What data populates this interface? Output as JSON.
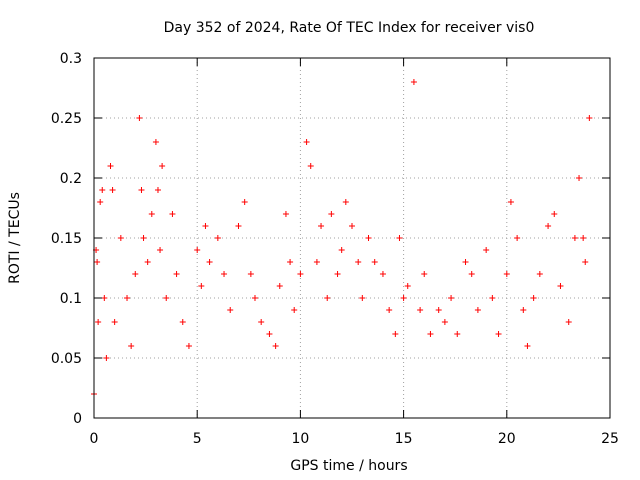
{
  "chart_data": {
    "type": "scatter",
    "title": "Day 352 of 2024, Rate Of TEC Index for receiver vis0",
    "xlabel": "GPS time / hours",
    "ylabel": "ROTI / TECUs",
    "xlim": [
      0,
      25
    ],
    "ylim": [
      0,
      0.3
    ],
    "xticks": [
      "0",
      "5",
      "10",
      "15",
      "20",
      "25"
    ],
    "yticks": [
      "0",
      "0.05",
      "0.1",
      "0.15",
      "0.2",
      "0.25",
      "0.3"
    ],
    "grid": true,
    "marker": "+",
    "color": "#ff0000",
    "series": [
      {
        "x": [
          0.0,
          0.1,
          0.15,
          0.2,
          0.3,
          0.4,
          0.5,
          0.6,
          0.8,
          0.9,
          1.0,
          1.3,
          1.6,
          1.8,
          2.0,
          2.2,
          2.3,
          2.4,
          2.6,
          2.8,
          3.0,
          3.1,
          3.2,
          3.3,
          3.5,
          3.8,
          4.0,
          4.3,
          4.6,
          5.0,
          5.2,
          5.4,
          5.6,
          6.0,
          6.3,
          6.6,
          7.0,
          7.3,
          7.6,
          7.8,
          8.1,
          8.5,
          8.8,
          9.0,
          9.3,
          9.5,
          9.7,
          10.0,
          10.3,
          10.5,
          10.8,
          11.0,
          11.3,
          11.5,
          11.8,
          12.0,
          12.2,
          12.5,
          12.8,
          13.0,
          13.3,
          13.6,
          14.0,
          14.3,
          14.6,
          14.8,
          15.0,
          15.2,
          15.5,
          15.8,
          16.0,
          16.3,
          16.7,
          17.0,
          17.3,
          17.6,
          18.0,
          18.3,
          18.6,
          19.0,
          19.3,
          19.6,
          20.0,
          20.2,
          20.5,
          20.8,
          21.0,
          21.3,
          21.6,
          22.0,
          22.3,
          22.6,
          23.0,
          23.3,
          23.5,
          23.7,
          23.8,
          24.0
        ],
        "y": [
          0.02,
          0.14,
          0.13,
          0.08,
          0.18,
          0.19,
          0.1,
          0.05,
          0.21,
          0.19,
          0.08,
          0.15,
          0.1,
          0.06,
          0.12,
          0.25,
          0.19,
          0.15,
          0.13,
          0.17,
          0.23,
          0.19,
          0.14,
          0.21,
          0.1,
          0.17,
          0.12,
          0.08,
          0.06,
          0.14,
          0.11,
          0.16,
          0.13,
          0.15,
          0.12,
          0.09,
          0.16,
          0.18,
          0.12,
          0.1,
          0.08,
          0.07,
          0.06,
          0.11,
          0.17,
          0.13,
          0.09,
          0.12,
          0.23,
          0.21,
          0.13,
          0.16,
          0.1,
          0.17,
          0.12,
          0.14,
          0.18,
          0.16,
          0.13,
          0.1,
          0.15,
          0.13,
          0.12,
          0.09,
          0.07,
          0.15,
          0.1,
          0.11,
          0.28,
          0.09,
          0.12,
          0.07,
          0.09,
          0.08,
          0.1,
          0.07,
          0.13,
          0.12,
          0.09,
          0.14,
          0.1,
          0.07,
          0.12,
          0.18,
          0.15,
          0.09,
          0.06,
          0.1,
          0.12,
          0.16,
          0.17,
          0.11,
          0.08,
          0.15,
          0.2,
          0.15,
          0.13,
          0.25
        ]
      }
    ]
  }
}
